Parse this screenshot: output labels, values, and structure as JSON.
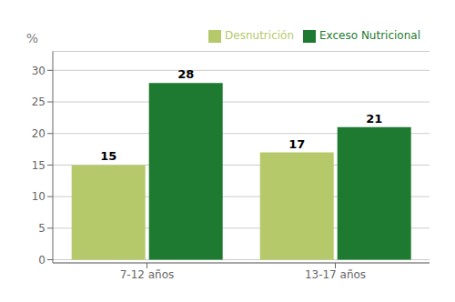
{
  "chart_data": {
    "type": "bar",
    "categories": [
      "7-12 años",
      "13-17 años"
    ],
    "series": [
      {
        "name": "Desnutrición",
        "color": "#b5c96a",
        "values": [
          15,
          17
        ]
      },
      {
        "name": "Exceso Nutricional",
        "color": "#1e7a30",
        "values": [
          28,
          21
        ]
      }
    ],
    "ylabel": "%",
    "ylim": [
      -0.5,
      33
    ],
    "yticks": [
      0,
      5,
      10,
      15,
      20,
      25,
      30
    ],
    "grid": true,
    "legend": "upper right",
    "data_labels": true
  }
}
